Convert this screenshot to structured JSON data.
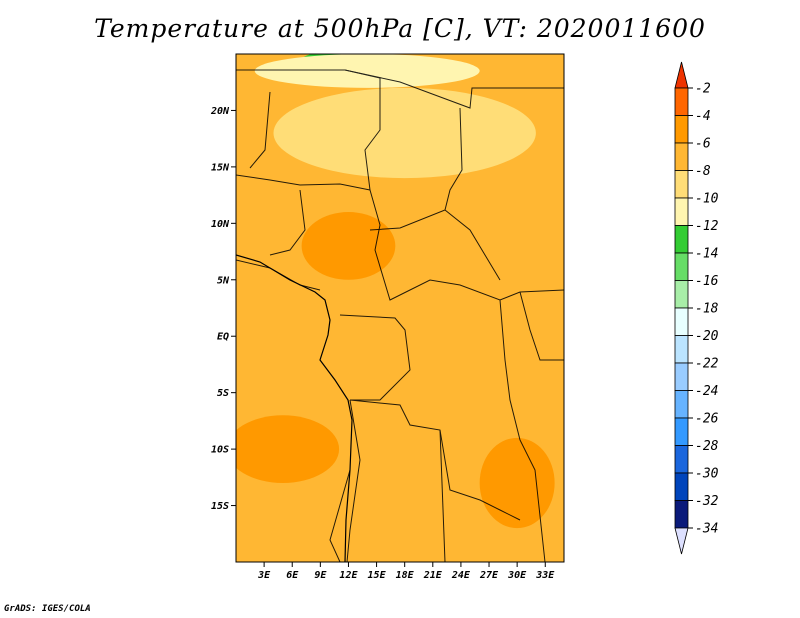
{
  "chart_data": {
    "type": "heatmap",
    "title": "Temperature at 500hPa [C], VT: 2020011600",
    "xlabel": "",
    "ylabel": "",
    "x_ticks": [
      "3E",
      "6E",
      "9E",
      "12E",
      "15E",
      "18E",
      "21E",
      "24E",
      "27E",
      "30E",
      "33E"
    ],
    "x_tick_values": [
      3,
      6,
      9,
      12,
      15,
      18,
      21,
      24,
      27,
      30,
      33
    ],
    "y_ticks": [
      "20N",
      "15N",
      "10N",
      "5N",
      "EQ",
      "5S",
      "10S",
      "15S"
    ],
    "y_tick_values": [
      20,
      15,
      10,
      5,
      0,
      -5,
      -10,
      -15
    ],
    "xlim": [
      0,
      35
    ],
    "ylim": [
      -20,
      25
    ],
    "colorbar": {
      "labels": [
        "-2",
        "-4",
        "-6",
        "-8",
        "-10",
        "-12",
        "-14",
        "-16",
        "-18",
        "-20",
        "-22",
        "-24",
        "-26",
        "-28",
        "-30",
        "-32",
        "-34"
      ],
      "levels": [
        -2,
        -4,
        -6,
        -8,
        -10,
        -12,
        -14,
        -16,
        -18,
        -20,
        -22,
        -24,
        -26,
        -28,
        -30,
        -32,
        -34
      ],
      "colors": [
        "#ee3300",
        "#ff6600",
        "#ff9900",
        "#ffb733",
        "#ffdd77",
        "#fff5b0",
        "#33cc33",
        "#66dd66",
        "#a8eea8",
        "#e8ffff",
        "#bbe4ff",
        "#99ccff",
        "#66b3ff",
        "#3399ff",
        "#1a66dd",
        "#0044bb",
        "#0a1a7a",
        "#dde0ff"
      ]
    },
    "regions": [
      {
        "level": -12,
        "lat": 24.5,
        "lon": 12,
        "rx": 5,
        "ry": 0.8
      },
      {
        "level": -10,
        "lat": 23.5,
        "lon": 14,
        "rx": 12,
        "ry": 1.5
      },
      {
        "level": -8,
        "lat": 18,
        "lon": 18,
        "rx": 14,
        "ry": 4
      },
      {
        "level": -4,
        "lat": 8,
        "lon": 12,
        "rx": 5,
        "ry": 3
      },
      {
        "level": -4,
        "lat": -10,
        "lon": 5,
        "rx": 6,
        "ry": 3
      },
      {
        "level": -4,
        "lat": -13,
        "lon": 30,
        "rx": 4,
        "ry": 4
      }
    ]
  },
  "credit": "GrADS: IGES/COLA"
}
